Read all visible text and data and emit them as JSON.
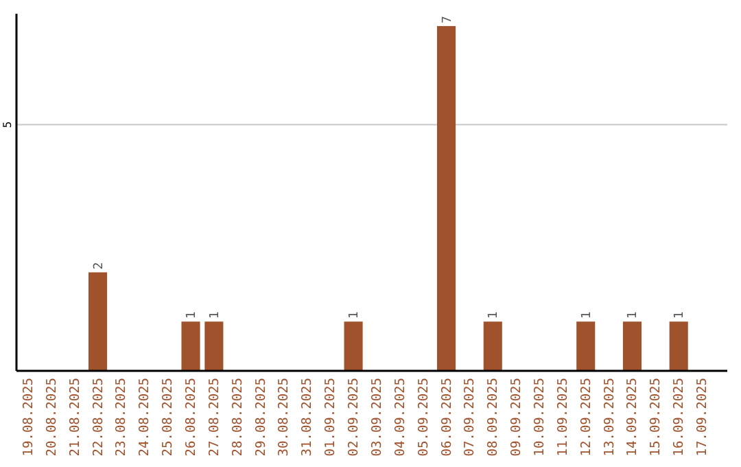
{
  "chart_data": {
    "type": "bar",
    "categories": [
      "19.08.2025",
      "20.08.2025",
      "21.08.2025",
      "22.08.2025",
      "23.08.2025",
      "24.08.2025",
      "25.08.2025",
      "26.08.2025",
      "27.08.2025",
      "28.08.2025",
      "29.08.2025",
      "30.08.2025",
      "31.08.2025",
      "01.09.2025",
      "02.09.2025",
      "03.09.2025",
      "04.09.2025",
      "05.09.2025",
      "06.09.2025",
      "07.09.2025",
      "08.09.2025",
      "09.09.2025",
      "10.09.2025",
      "11.09.2025",
      "12.09.2025",
      "13.09.2025",
      "14.09.2025",
      "15.09.2025",
      "16.09.2025",
      "17.09.2025"
    ],
    "values": [
      0,
      0,
      0,
      2,
      0,
      0,
      0,
      1,
      1,
      0,
      0,
      0,
      0,
      0,
      1,
      0,
      0,
      0,
      7,
      0,
      1,
      0,
      0,
      0,
      1,
      0,
      1,
      0,
      1,
      0
    ],
    "value_labels": [
      null,
      null,
      null,
      "2",
      null,
      null,
      null,
      "1",
      "1",
      null,
      null,
      null,
      null,
      null,
      "1",
      null,
      null,
      null,
      "7",
      null,
      "1",
      null,
      null,
      null,
      "1",
      null,
      "1",
      null,
      "1",
      null
    ],
    "color": "#a0522d",
    "ylim": [
      0,
      7.25
    ],
    "yticks": [
      5
    ],
    "grid": "y"
  }
}
